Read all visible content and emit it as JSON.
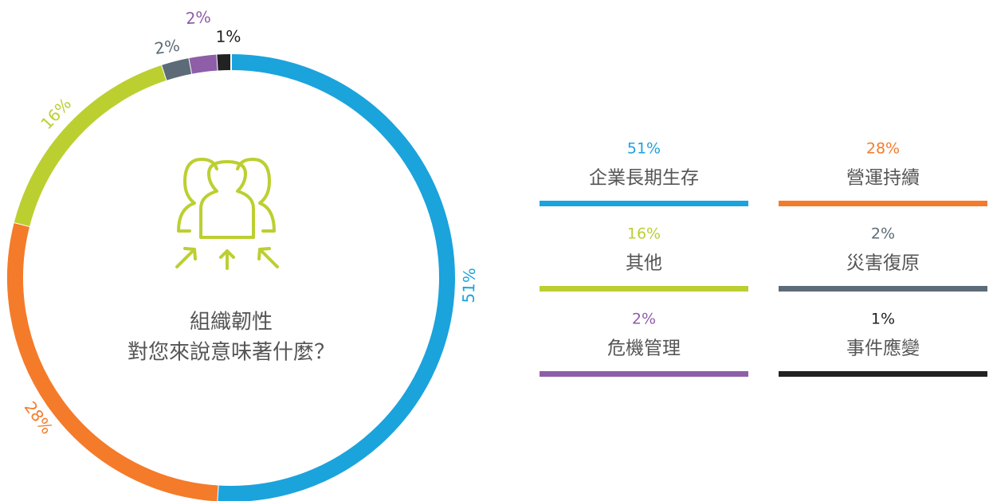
{
  "chart_data": {
    "type": "donut",
    "title": "組織韌性",
    "subtitle": "對您來說意味著什麼？",
    "series": [
      {
        "name": "share",
        "categories": [
          "企業長期生存",
          "營運持續",
          "其他",
          "災害復原",
          "危機管理",
          "事件應變"
        ],
        "values": [
          51,
          28,
          16,
          2,
          2,
          1
        ],
        "value_labels": [
          "51%",
          "28%",
          "16%",
          "2%",
          "2%",
          "1%"
        ],
        "colors": [
          "#1ba3dc",
          "#f47b2a",
          "#bccf31",
          "#5c6b77",
          "#8e5ea8",
          "#222222"
        ]
      }
    ]
  }
}
